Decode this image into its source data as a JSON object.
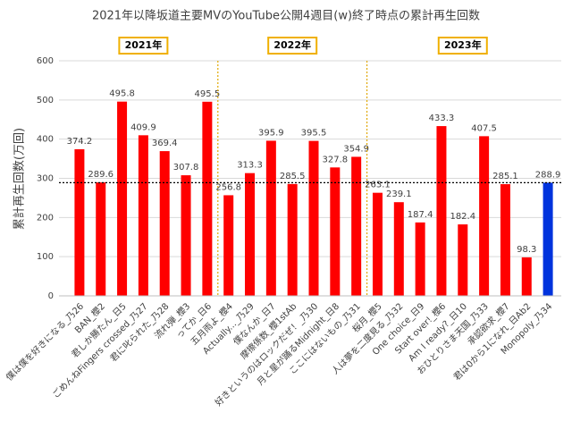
{
  "chart_data": {
    "type": "bar",
    "title": "2021年以降坂道主要MVのYouTube公開4週目(w)終了時点の累計再生回数",
    "y_label": "累計再生回数(万回)",
    "ylim": [
      0,
      600
    ],
    "yticks": [
      0,
      100,
      200,
      300,
      400,
      500,
      600
    ],
    "grid": true,
    "groups": [
      {
        "label": "2021年",
        "categories": [
          "僕は僕を好きになる_乃26",
          "BAN_櫻2",
          "君しか勝たん_日5",
          "ごめんねFingers crossed_乃27",
          "君に叱られた_乃28",
          "流れ弾_櫻3",
          "ってか_日6"
        ],
        "values": [
          374.2,
          289.6,
          495.8,
          409.9,
          369.4,
          307.8,
          495.5
        ],
        "colors": [
          "#ff0000",
          "#ff0000",
          "#ff0000",
          "#ff0000",
          "#ff0000",
          "#ff0000",
          "#ff0000"
        ]
      },
      {
        "label": "2022年",
        "categories": [
          "五月雨よ_櫻4",
          "Actually..._乃29",
          "僕なんか_日7",
          "摩擦係数_櫻1stAb",
          "好きというのはロックだぜ！_乃30",
          "月と星が踊るMidnight_日8",
          "ここにはないもの_乃31"
        ],
        "values": [
          256.8,
          313.3,
          395.9,
          285.5,
          395.5,
          327.8,
          354.9
        ],
        "colors": [
          "#ff0000",
          "#ff0000",
          "#ff0000",
          "#ff0000",
          "#ff0000",
          "#ff0000",
          "#ff0000"
        ]
      },
      {
        "label": "2023年",
        "categories": [
          "桜月_櫻5",
          "人は夢を二度見る_乃32",
          "One choice_日9",
          "Start over!_櫻6",
          "Am I ready?_日10",
          "おひとりさま天国_乃33",
          "承認欲求_櫻7",
          "君は0から1になれ_日Ab2",
          "Monopoly_乃34"
        ],
        "values": [
          263.1,
          239.1,
          187.4,
          433.3,
          182.4,
          407.5,
          285.1,
          98.3,
          288.9
        ],
        "colors": [
          "#ff0000",
          "#ff0000",
          "#ff0000",
          "#ff0000",
          "#ff0000",
          "#ff0000",
          "#ff0000",
          "#ff0000",
          "#0033dd"
        ]
      }
    ]
  }
}
